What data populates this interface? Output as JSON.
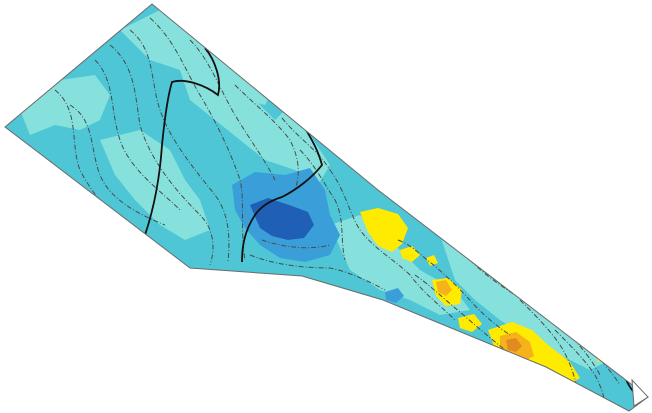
{
  "map": {
    "type": "field-elevation-thematic-map",
    "background": "#ffffff",
    "boundary_stroke": "#6b6b6b",
    "zones": [
      {
        "name": "light-cyan",
        "color": "#86e0dc"
      },
      {
        "name": "medium-cyan",
        "color": "#4ec6d6"
      },
      {
        "name": "blue",
        "color": "#3a9fd8"
      },
      {
        "name": "dark-blue",
        "color": "#1f5fb5"
      },
      {
        "name": "yellow",
        "color": "#ffeb00"
      },
      {
        "name": "orange",
        "color": "#f6b21a"
      },
      {
        "name": "dark-orange",
        "color": "#e08b22"
      }
    ],
    "contours": {
      "minor_color": "#4a4a4a",
      "major_color": "#111111",
      "minor_style": "dash-dot"
    }
  }
}
